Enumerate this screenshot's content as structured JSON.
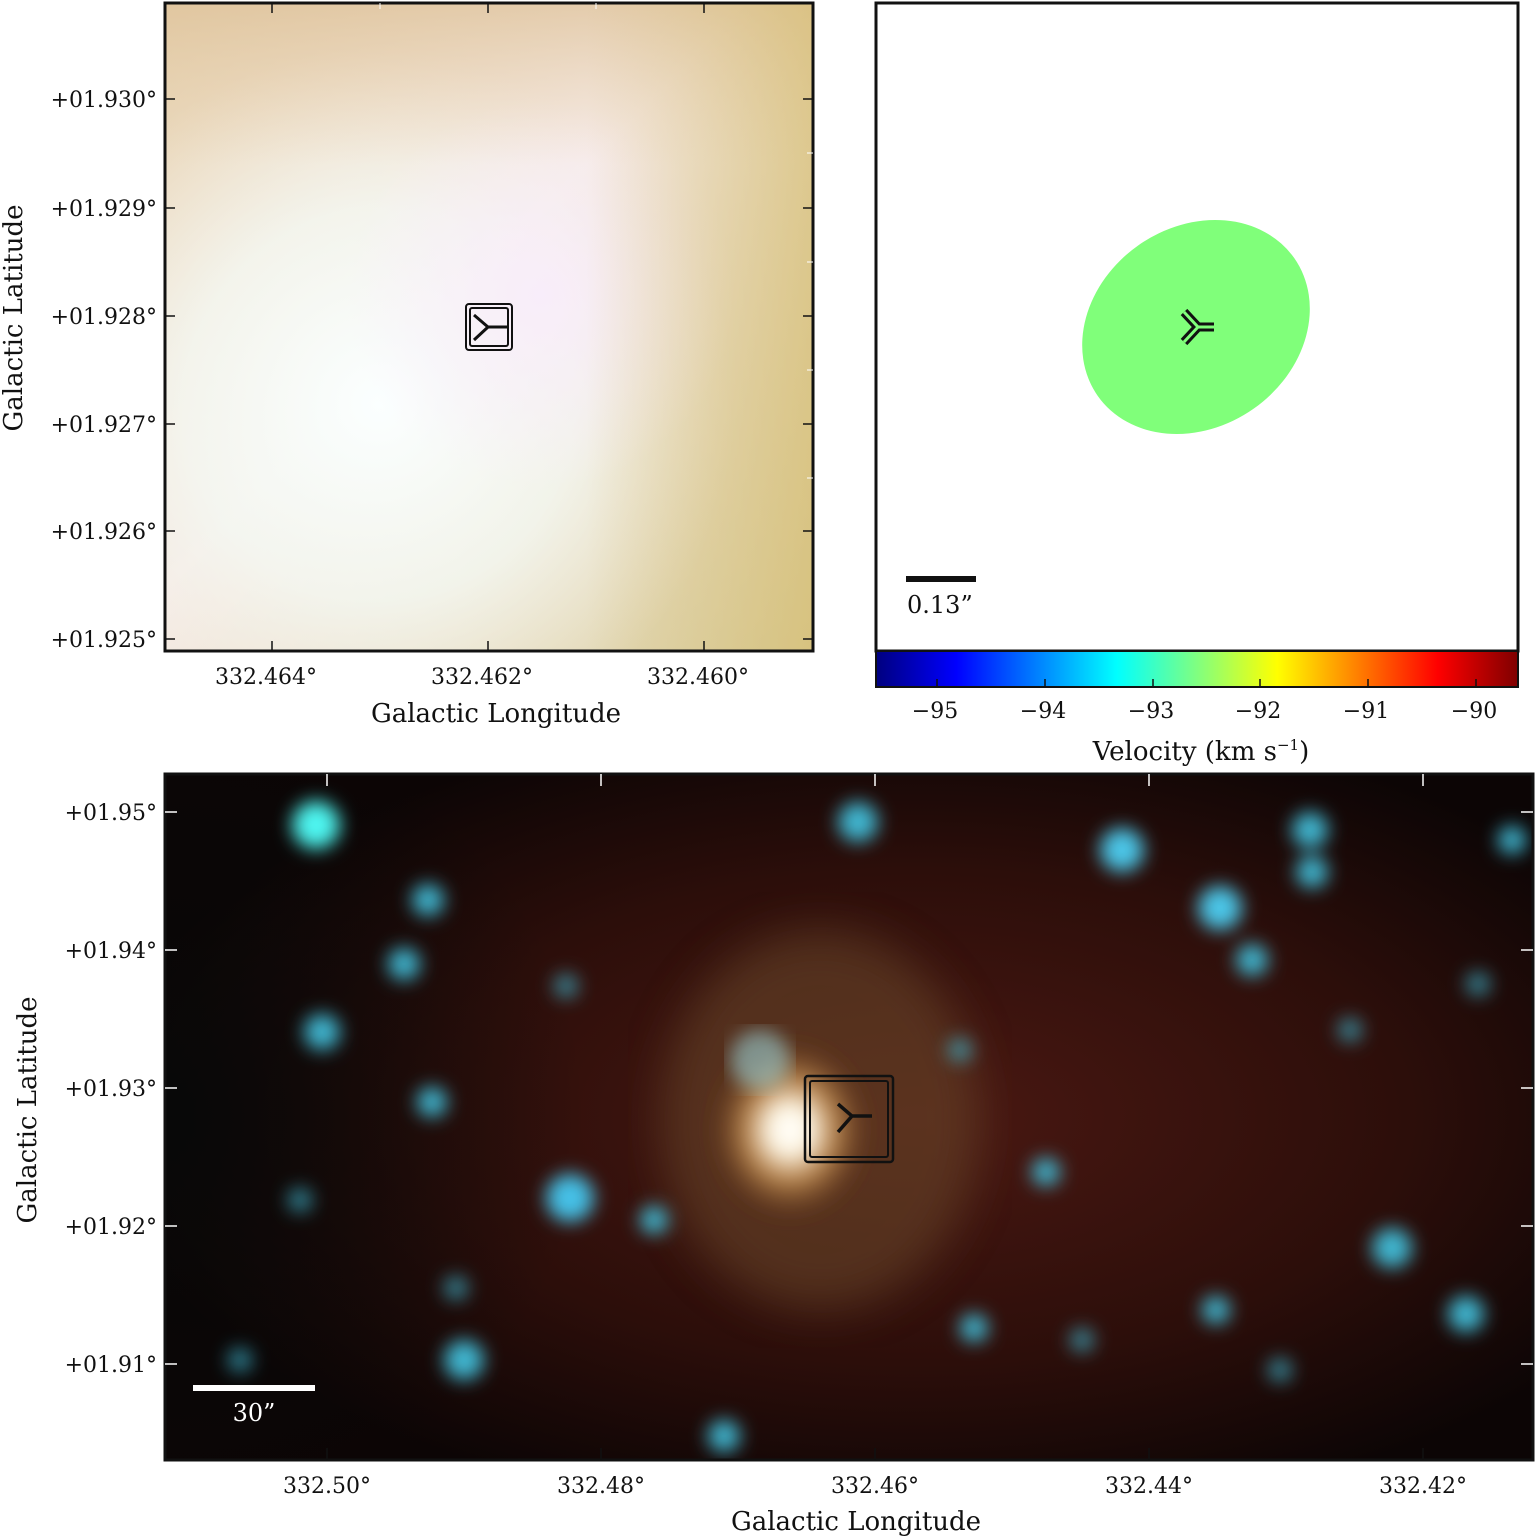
{
  "panel_top_left": {
    "x_ticks": [
      "332.464°",
      "332.462°",
      "332.460°"
    ],
    "y_ticks": [
      "+01.930°",
      "+01.929°",
      "+01.928°",
      "+01.927°",
      "+01.926°",
      "+01.925°"
    ],
    "xlabel": "Galactic Longitude",
    "ylabel": "Galactic Latitude"
  },
  "panel_top_right": {
    "scale_bar_label": "0.13”",
    "source_color": "#80ff7a",
    "colorbar": {
      "ticks": [
        "−95",
        "−94",
        "−93",
        "−92",
        "−91",
        "−90"
      ],
      "label_main": "Velocity (km s",
      "label_sup": "−1",
      "label_close": ")"
    }
  },
  "panel_bottom": {
    "x_ticks": [
      "332.50°",
      "332.48°",
      "332.46°",
      "332.44°",
      "332.42°"
    ],
    "y_ticks": [
      "+01.95°",
      "+01.94°",
      "+01.93°",
      "+01.92°",
      "+01.91°"
    ],
    "xlabel": "Galactic Longitude",
    "ylabel": "Galactic Latitude",
    "scale_bar_label": "30”"
  }
}
